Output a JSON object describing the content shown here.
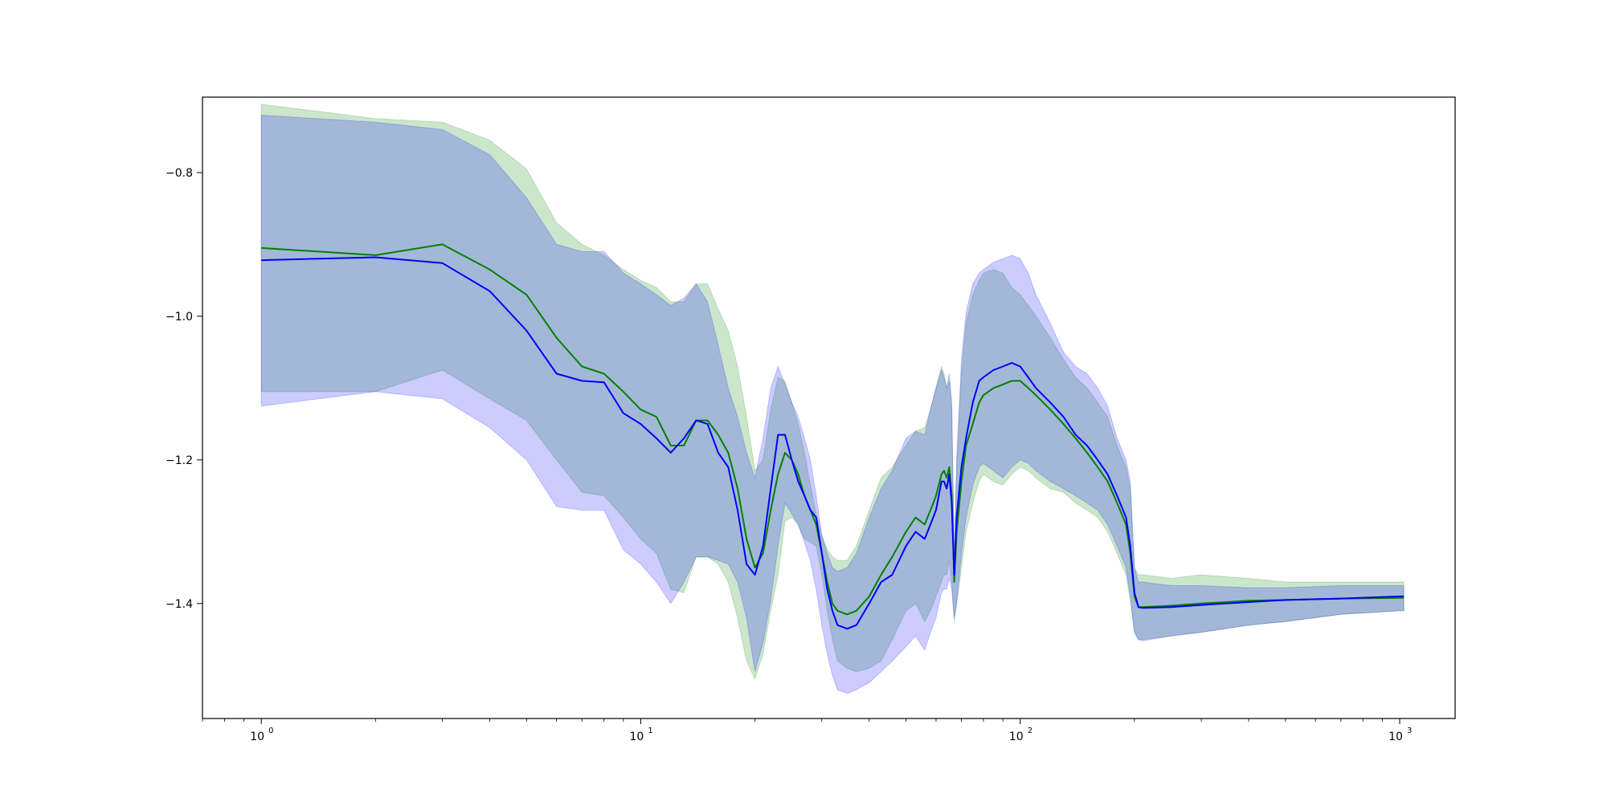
{
  "chart_data": {
    "type": "line",
    "title": "",
    "xlabel": "",
    "ylabel": "",
    "xscale": "log",
    "xlim": [
      0.7,
      1400
    ],
    "ylim": [
      -1.56,
      -0.695
    ],
    "grid": false,
    "legend": "none",
    "x_ticks": [
      {
        "value": 1,
        "base": "10",
        "exp": "0"
      },
      {
        "value": 10,
        "base": "10",
        "exp": "1"
      },
      {
        "value": 100,
        "base": "10",
        "exp": "2"
      },
      {
        "value": 1000,
        "base": "10",
        "exp": "3"
      }
    ],
    "y_ticks": [
      {
        "value": -0.8,
        "label": "−0.8"
      },
      {
        "value": -1.0,
        "label": "−1.0"
      },
      {
        "value": -1.2,
        "label": "−1.2"
      },
      {
        "value": -1.4,
        "label": "−1.4"
      }
    ],
    "series": [
      {
        "color": "#008000",
        "band_color": "#008000",
        "band_opacity": 0.2,
        "x": [
          1,
          2,
          3,
          4,
          5,
          6,
          7,
          8,
          9,
          10,
          11,
          12,
          13,
          14,
          15,
          16,
          17,
          18,
          19,
          20,
          21,
          22,
          23,
          24,
          25,
          26,
          27,
          28,
          29,
          30,
          31,
          32,
          33,
          35,
          37,
          40,
          43,
          46,
          50,
          53,
          56,
          58,
          60,
          62,
          63,
          64,
          65,
          66,
          67,
          68,
          70,
          72,
          75,
          78,
          80,
          85,
          90,
          95,
          100,
          105,
          110,
          120,
          130,
          140,
          150,
          160,
          170,
          180,
          190,
          195,
          200,
          205,
          210,
          250,
          300,
          400,
          500,
          700,
          1000,
          1025
        ],
        "mean": [
          -0.905,
          -0.915,
          -0.9,
          -0.935,
          -0.97,
          -1.03,
          -1.07,
          -1.08,
          -1.105,
          -1.13,
          -1.14,
          -1.18,
          -1.18,
          -1.145,
          -1.145,
          -1.165,
          -1.19,
          -1.24,
          -1.31,
          -1.35,
          -1.33,
          -1.27,
          -1.22,
          -1.19,
          -1.2,
          -1.22,
          -1.25,
          -1.27,
          -1.29,
          -1.33,
          -1.37,
          -1.4,
          -1.41,
          -1.415,
          -1.41,
          -1.39,
          -1.36,
          -1.335,
          -1.3,
          -1.28,
          -1.29,
          -1.27,
          -1.25,
          -1.22,
          -1.215,
          -1.225,
          -1.21,
          -1.25,
          -1.37,
          -1.3,
          -1.23,
          -1.18,
          -1.15,
          -1.12,
          -1.11,
          -1.1,
          -1.095,
          -1.09,
          -1.09,
          -1.1,
          -1.11,
          -1.13,
          -1.15,
          -1.17,
          -1.19,
          -1.21,
          -1.23,
          -1.26,
          -1.29,
          -1.33,
          -1.39,
          -1.405,
          -1.405,
          -1.403,
          -1.4,
          -1.396,
          -1.395,
          -1.393,
          -1.392,
          -1.392
        ],
        "upper": [
          -0.705,
          -0.725,
          -0.73,
          -0.755,
          -0.795,
          -0.87,
          -0.9,
          -0.915,
          -0.935,
          -0.95,
          -0.96,
          -0.98,
          -0.98,
          -0.955,
          -0.955,
          -0.99,
          -1.02,
          -1.07,
          -1.14,
          -1.215,
          -1.2,
          -1.13,
          -1.085,
          -1.09,
          -1.12,
          -1.15,
          -1.19,
          -1.235,
          -1.275,
          -1.305,
          -1.325,
          -1.335,
          -1.34,
          -1.34,
          -1.32,
          -1.27,
          -1.225,
          -1.21,
          -1.18,
          -1.16,
          -1.155,
          -1.13,
          -1.1,
          -1.07,
          -1.08,
          -1.1,
          -1.09,
          -1.13,
          -1.34,
          -1.21,
          -1.08,
          -1.01,
          -0.97,
          -0.95,
          -0.94,
          -0.935,
          -0.94,
          -0.96,
          -0.97,
          -0.985,
          -1.0,
          -1.03,
          -1.06,
          -1.085,
          -1.1,
          -1.12,
          -1.14,
          -1.18,
          -1.21,
          -1.24,
          -1.35,
          -1.36,
          -1.36,
          -1.365,
          -1.36,
          -1.365,
          -1.37,
          -1.37,
          -1.37,
          -1.37
        ],
        "lower": [
          -1.105,
          -1.105,
          -1.075,
          -1.115,
          -1.145,
          -1.2,
          -1.245,
          -1.25,
          -1.28,
          -1.31,
          -1.33,
          -1.38,
          -1.385,
          -1.335,
          -1.335,
          -1.345,
          -1.37,
          -1.42,
          -1.48,
          -1.505,
          -1.47,
          -1.41,
          -1.36,
          -1.285,
          -1.28,
          -1.29,
          -1.31,
          -1.315,
          -1.32,
          -1.36,
          -1.41,
          -1.45,
          -1.48,
          -1.49,
          -1.495,
          -1.49,
          -1.48,
          -1.45,
          -1.41,
          -1.4,
          -1.425,
          -1.41,
          -1.39,
          -1.37,
          -1.36,
          -1.36,
          -1.34,
          -1.37,
          -1.425,
          -1.4,
          -1.35,
          -1.3,
          -1.26,
          -1.23,
          -1.22,
          -1.23,
          -1.235,
          -1.22,
          -1.21,
          -1.215,
          -1.225,
          -1.24,
          -1.245,
          -1.26,
          -1.27,
          -1.28,
          -1.3,
          -1.33,
          -1.36,
          -1.395,
          -1.44,
          -1.45,
          -1.45,
          -1.445,
          -1.44,
          -1.43,
          -1.425,
          -1.415,
          -1.41,
          -1.41
        ]
      },
      {
        "color": "#0000ff",
        "band_color": "#0000ff",
        "band_opacity": 0.2,
        "x": [
          1,
          2,
          3,
          4,
          5,
          6,
          7,
          8,
          9,
          10,
          11,
          12,
          13,
          14,
          15,
          16,
          17,
          18,
          19,
          20,
          21,
          22,
          23,
          24,
          25,
          26,
          27,
          28,
          29,
          30,
          31,
          32,
          33,
          35,
          37,
          40,
          43,
          46,
          50,
          53,
          56,
          58,
          60,
          62,
          63,
          64,
          65,
          66,
          67,
          68,
          70,
          72,
          75,
          78,
          80,
          85,
          90,
          95,
          100,
          105,
          110,
          120,
          130,
          140,
          150,
          160,
          170,
          180,
          190,
          195,
          200,
          205,
          210,
          250,
          300,
          400,
          500,
          700,
          1000,
          1025
        ],
        "mean": [
          -0.922,
          -0.918,
          -0.926,
          -0.965,
          -1.02,
          -1.08,
          -1.09,
          -1.092,
          -1.135,
          -1.15,
          -1.17,
          -1.19,
          -1.17,
          -1.145,
          -1.15,
          -1.19,
          -1.21,
          -1.27,
          -1.345,
          -1.36,
          -1.32,
          -1.24,
          -1.165,
          -1.165,
          -1.2,
          -1.23,
          -1.25,
          -1.27,
          -1.28,
          -1.33,
          -1.38,
          -1.41,
          -1.43,
          -1.435,
          -1.43,
          -1.4,
          -1.37,
          -1.36,
          -1.32,
          -1.3,
          -1.31,
          -1.29,
          -1.27,
          -1.23,
          -1.23,
          -1.24,
          -1.22,
          -1.26,
          -1.36,
          -1.28,
          -1.21,
          -1.17,
          -1.12,
          -1.09,
          -1.085,
          -1.075,
          -1.07,
          -1.065,
          -1.07,
          -1.085,
          -1.1,
          -1.12,
          -1.14,
          -1.165,
          -1.18,
          -1.2,
          -1.22,
          -1.25,
          -1.28,
          -1.32,
          -1.385,
          -1.405,
          -1.406,
          -1.405,
          -1.402,
          -1.398,
          -1.395,
          -1.393,
          -1.39,
          -1.39
        ],
        "upper": [
          -0.72,
          -0.73,
          -0.74,
          -0.775,
          -0.835,
          -0.9,
          -0.91,
          -0.91,
          -0.94,
          -0.955,
          -0.97,
          -0.985,
          -0.975,
          -0.955,
          -0.98,
          -1.04,
          -1.1,
          -1.14,
          -1.19,
          -1.225,
          -1.17,
          -1.1,
          -1.07,
          -1.095,
          -1.12,
          -1.14,
          -1.17,
          -1.2,
          -1.25,
          -1.305,
          -1.33,
          -1.35,
          -1.355,
          -1.35,
          -1.33,
          -1.28,
          -1.24,
          -1.215,
          -1.17,
          -1.16,
          -1.165,
          -1.13,
          -1.1,
          -1.075,
          -1.085,
          -1.1,
          -1.08,
          -1.12,
          -1.34,
          -1.2,
          -1.06,
          -0.995,
          -0.955,
          -0.94,
          -0.935,
          -0.925,
          -0.92,
          -0.915,
          -0.92,
          -0.94,
          -0.97,
          -1.01,
          -1.05,
          -1.07,
          -1.08,
          -1.1,
          -1.125,
          -1.17,
          -1.2,
          -1.23,
          -1.35,
          -1.37,
          -1.37,
          -1.375,
          -1.375,
          -1.378,
          -1.378,
          -1.375,
          -1.375,
          -1.375
        ],
        "lower": [
          -1.125,
          -1.105,
          -1.115,
          -1.155,
          -1.2,
          -1.265,
          -1.27,
          -1.27,
          -1.325,
          -1.345,
          -1.37,
          -1.4,
          -1.37,
          -1.335,
          -1.335,
          -1.34,
          -1.345,
          -1.37,
          -1.42,
          -1.495,
          -1.455,
          -1.395,
          -1.32,
          -1.26,
          -1.275,
          -1.29,
          -1.315,
          -1.34,
          -1.38,
          -1.43,
          -1.47,
          -1.5,
          -1.52,
          -1.525,
          -1.52,
          -1.51,
          -1.495,
          -1.48,
          -1.46,
          -1.445,
          -1.465,
          -1.44,
          -1.42,
          -1.385,
          -1.38,
          -1.38,
          -1.365,
          -1.38,
          -1.42,
          -1.4,
          -1.33,
          -1.28,
          -1.235,
          -1.21,
          -1.205,
          -1.215,
          -1.225,
          -1.21,
          -1.2,
          -1.205,
          -1.215,
          -1.23,
          -1.24,
          -1.25,
          -1.26,
          -1.27,
          -1.29,
          -1.32,
          -1.35,
          -1.39,
          -1.44,
          -1.45,
          -1.452,
          -1.445,
          -1.44,
          -1.43,
          -1.425,
          -1.415,
          -1.41,
          -1.41
        ]
      }
    ]
  }
}
